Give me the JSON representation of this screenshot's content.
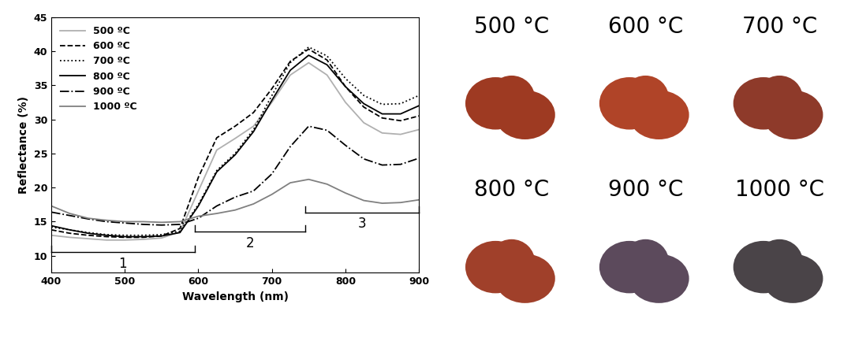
{
  "chart_data": {
    "type": "line",
    "x_label": "Wavelength (nm)",
    "y_label": "Reflectance (%)",
    "x": [
      400,
      425,
      450,
      475,
      500,
      525,
      550,
      575,
      600,
      625,
      650,
      675,
      700,
      725,
      750,
      775,
      800,
      825,
      850,
      875,
      900
    ],
    "series": [
      {
        "name": "500 ºC",
        "color": "#b0b0b0",
        "line_style": "solid",
        "values": [
          13.0,
          12.7,
          12.5,
          12.3,
          12.3,
          12.4,
          12.6,
          13.5,
          19.5,
          25.5,
          27.2,
          29.0,
          32.5,
          36.5,
          38.3,
          36.5,
          32.5,
          29.5,
          28.0,
          27.8,
          28.5
        ]
      },
      {
        "name": "600 ºC",
        "color": "#000000",
        "line_style": "dashed",
        "values": [
          13.8,
          13.3,
          13.0,
          12.8,
          12.7,
          12.7,
          12.9,
          14.0,
          21.5,
          27.3,
          29.0,
          31.0,
          34.5,
          38.5,
          40.3,
          38.7,
          34.8,
          31.8,
          30.2,
          29.8,
          30.5
        ]
      },
      {
        "name": "700 ºC",
        "color": "#000000",
        "line_style": "dotted",
        "values": [
          14.2,
          13.8,
          13.4,
          13.1,
          13.0,
          13.0,
          13.1,
          13.6,
          17.5,
          22.5,
          25.0,
          28.5,
          33.5,
          38.3,
          40.6,
          39.3,
          36.0,
          33.5,
          32.2,
          32.3,
          33.5
        ]
      },
      {
        "name": "800 ºC",
        "color": "#000000",
        "line_style": "solid",
        "values": [
          14.4,
          13.8,
          13.3,
          13.0,
          12.8,
          12.8,
          12.9,
          13.4,
          17.3,
          22.3,
          24.8,
          28.2,
          32.8,
          37.2,
          39.4,
          38.0,
          34.8,
          32.3,
          30.8,
          30.8,
          32.0
        ]
      },
      {
        "name": "900 ºC",
        "color": "#000000",
        "line_style": "dashdot",
        "values": [
          16.4,
          15.9,
          15.4,
          15.0,
          14.8,
          14.6,
          14.5,
          14.6,
          15.5,
          17.3,
          18.6,
          19.5,
          22.0,
          26.0,
          29.0,
          28.4,
          26.2,
          24.2,
          23.3,
          23.4,
          24.3
        ]
      },
      {
        "name": "1000 ºC",
        "color": "#808080",
        "line_style": "solid",
        "values": [
          17.3,
          16.2,
          15.5,
          15.2,
          15.0,
          15.0,
          14.9,
          15.0,
          15.8,
          16.2,
          16.7,
          17.6,
          19.0,
          20.7,
          21.2,
          20.5,
          19.2,
          18.1,
          17.7,
          17.8,
          18.2
        ]
      }
    ],
    "xlim": [
      400,
      900
    ],
    "xticks": [
      400,
      500,
      600,
      700,
      800,
      900
    ],
    "ylim": [
      7.5,
      45
    ],
    "yticks": [
      10,
      15,
      20,
      25,
      30,
      35,
      40,
      45
    ],
    "legend": "upper left",
    "annotations": [
      {
        "text": "1",
        "x_range": [
          400,
          595
        ],
        "y": 10.5
      },
      {
        "text": "2",
        "x_range": [
          595,
          745
        ],
        "y": 13.5
      },
      {
        "text": "3",
        "x_range": [
          745,
          900
        ],
        "y": 16.3
      }
    ]
  },
  "photos": {
    "labels": [
      "500 °C",
      "600 °C",
      "700 °C",
      "800 °C",
      "900 °C",
      "1000 °C"
    ],
    "colors": [
      "#9e3a22",
      "#b04428",
      "#8e3a2a",
      "#a0402a",
      "#5c4a5c",
      "#4a4448"
    ]
  }
}
